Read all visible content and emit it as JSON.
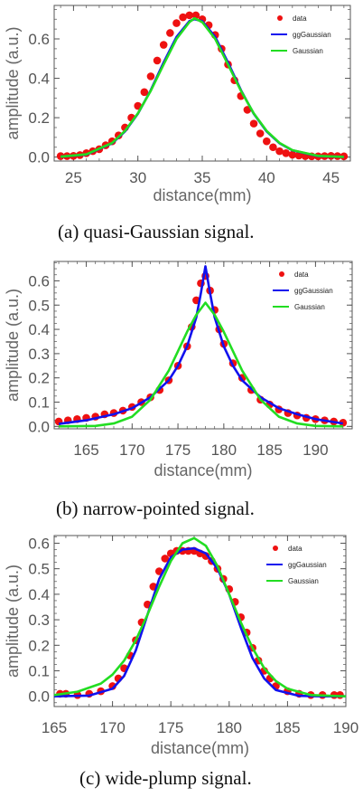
{
  "colors": {
    "data": "#ee1111",
    "ggGaussian": "#1111ee",
    "Gaussian": "#22dd22",
    "axis": "#555555"
  },
  "captions": [
    "(a)  quasi-Gaussian signal.",
    "(b)  narrow-pointed signal.",
    "(c)  wide-plump signal."
  ],
  "chart_data": [
    {
      "type": "scatter",
      "title": "",
      "xlabel": "distance(mm)",
      "ylabel": "amplitude (a.u.)",
      "xlim": [
        23.5,
        46.5
      ],
      "ylim": [
        -0.02,
        0.77
      ],
      "xticks": [
        25,
        30,
        35,
        40,
        45
      ],
      "yticks": [
        0.0,
        0.2,
        0.4,
        0.6
      ],
      "tick_labels_x": [
        "25",
        "30",
        "35",
        "40",
        "45"
      ],
      "tick_labels_y": [
        "0.0",
        "0.2",
        "0.4",
        "0.6"
      ],
      "legend": {
        "placement": "top-right",
        "entries": [
          "data",
          "ggGaussian",
          "Gaussian"
        ]
      },
      "series": [
        {
          "name": "data",
          "style": "points",
          "x": [
            24.0,
            24.5,
            25.0,
            25.5,
            26.0,
            26.5,
            27.0,
            27.5,
            28.0,
            28.5,
            29.0,
            29.5,
            30.0,
            30.5,
            31.0,
            31.5,
            32.0,
            32.5,
            33.0,
            33.5,
            34.0,
            34.5,
            35.0,
            35.5,
            36.0,
            36.5,
            37.0,
            37.5,
            38.0,
            38.5,
            39.0,
            39.5,
            40.0,
            40.5,
            41.0,
            41.5,
            42.0,
            42.5,
            43.0,
            43.5,
            44.0,
            44.5,
            45.0,
            45.5,
            46.0
          ],
          "y": [
            0.005,
            0.005,
            0.006,
            0.01,
            0.02,
            0.03,
            0.04,
            0.06,
            0.08,
            0.11,
            0.15,
            0.2,
            0.26,
            0.33,
            0.41,
            0.49,
            0.57,
            0.63,
            0.68,
            0.71,
            0.72,
            0.72,
            0.7,
            0.67,
            0.62,
            0.55,
            0.47,
            0.39,
            0.31,
            0.24,
            0.17,
            0.12,
            0.08,
            0.05,
            0.03,
            0.02,
            0.012,
            0.008,
            0.005,
            0.004,
            0.004,
            0.005,
            0.006,
            0.005,
            0.004
          ]
        },
        {
          "name": "ggGaussian",
          "style": "line",
          "x": [
            24,
            26,
            28,
            29,
            30,
            31,
            32,
            33,
            34,
            34.4,
            35,
            36,
            37,
            38,
            39,
            40,
            41,
            42,
            44,
            46
          ],
          "y": [
            0.002,
            0.013,
            0.07,
            0.13,
            0.22,
            0.34,
            0.48,
            0.61,
            0.69,
            0.7,
            0.69,
            0.61,
            0.48,
            0.34,
            0.22,
            0.13,
            0.07,
            0.034,
            0.005,
            0.001
          ]
        },
        {
          "name": "Gaussian",
          "style": "line",
          "x": [
            24,
            26,
            28,
            29,
            30,
            31,
            32,
            33,
            34,
            34.4,
            35,
            36,
            37,
            38,
            39,
            40,
            41,
            42,
            44,
            46
          ],
          "y": [
            0.002,
            0.014,
            0.072,
            0.133,
            0.222,
            0.337,
            0.47,
            0.6,
            0.685,
            0.705,
            0.685,
            0.6,
            0.47,
            0.337,
            0.222,
            0.133,
            0.072,
            0.035,
            0.006,
            0.001
          ]
        }
      ]
    },
    {
      "type": "scatter",
      "title": "",
      "xlabel": "distance(mm)",
      "ylabel": "amplitude (a.u.)",
      "xlim": [
        161.5,
        194
      ],
      "ylim": [
        -0.01,
        0.68
      ],
      "xticks": [
        165,
        170,
        175,
        180,
        185,
        190
      ],
      "yticks": [
        0.0,
        0.1,
        0.2,
        0.3,
        0.4,
        0.5,
        0.6
      ],
      "tick_labels_x": [
        "165",
        "170",
        "175",
        "180",
        "185",
        "190"
      ],
      "tick_labels_y": [
        "0.0",
        "0.1",
        "0.2",
        "0.3",
        "0.4",
        "0.5",
        "0.6"
      ],
      "legend": {
        "placement": "top-right",
        "entries": [
          "data",
          "ggGaussian",
          "Gaussian"
        ]
      },
      "series": [
        {
          "name": "data",
          "style": "points",
          "x": [
            162,
            163,
            164,
            165,
            166,
            167,
            168,
            169,
            170,
            171,
            172,
            173,
            174,
            175,
            176,
            176.5,
            177,
            177.5,
            178,
            178.5,
            179,
            179.5,
            180,
            181,
            182,
            183,
            184,
            185,
            186,
            187,
            188,
            189,
            190,
            191,
            192,
            193
          ],
          "y": [
            0.02,
            0.025,
            0.03,
            0.035,
            0.04,
            0.05,
            0.055,
            0.065,
            0.08,
            0.1,
            0.12,
            0.15,
            0.19,
            0.25,
            0.33,
            0.41,
            0.52,
            0.59,
            0.62,
            0.56,
            0.48,
            0.4,
            0.34,
            0.26,
            0.2,
            0.15,
            0.11,
            0.09,
            0.07,
            0.055,
            0.045,
            0.035,
            0.03,
            0.025,
            0.02,
            0.015
          ]
        },
        {
          "name": "ggGaussian",
          "style": "line",
          "x": [
            162,
            165,
            168,
            170,
            172,
            174,
            175,
            176,
            177,
            177.5,
            178,
            178.5,
            179,
            180,
            181,
            182,
            184,
            186,
            188,
            190,
            193
          ],
          "y": [
            0.01,
            0.025,
            0.05,
            0.075,
            0.12,
            0.19,
            0.25,
            0.33,
            0.45,
            0.55,
            0.66,
            0.55,
            0.45,
            0.33,
            0.25,
            0.19,
            0.12,
            0.075,
            0.05,
            0.03,
            0.012
          ]
        },
        {
          "name": "Gaussian",
          "style": "line",
          "x": [
            162,
            166,
            168,
            170,
            172,
            174,
            175,
            176,
            177,
            178,
            179,
            180,
            181,
            182,
            184,
            186,
            188,
            190,
            193
          ],
          "y": [
            0.0,
            0.002,
            0.012,
            0.04,
            0.11,
            0.23,
            0.31,
            0.39,
            0.46,
            0.51,
            0.46,
            0.39,
            0.31,
            0.23,
            0.11,
            0.04,
            0.012,
            0.002,
            0.0
          ]
        }
      ]
    },
    {
      "type": "scatter",
      "title": "",
      "xlabel": "distance(mm)",
      "ylabel": "amplitude (a.u.)",
      "xlim": [
        165,
        190
      ],
      "ylim": [
        -0.04,
        0.63
      ],
      "xticks": [
        165,
        170,
        175,
        180,
        185,
        190
      ],
      "yticks": [
        0.0,
        0.1,
        0.2,
        0.3,
        0.4,
        0.5,
        0.6
      ],
      "tick_labels_x": [
        "165",
        "170",
        "175",
        "180",
        "185",
        "190"
      ],
      "tick_labels_y": [
        "0.0",
        "0.1",
        "0.2",
        "0.3",
        "0.4",
        "0.5",
        "0.6"
      ],
      "legend": {
        "placement": "top-right",
        "entries": [
          "data",
          "ggGaussian",
          "Gaussian"
        ]
      },
      "series": [
        {
          "name": "data",
          "style": "points",
          "x": [
            165.5,
            166,
            167,
            168,
            169,
            170,
            170.5,
            171,
            171.5,
            172,
            172.5,
            173,
            173.5,
            174,
            174.5,
            175,
            175.5,
            176,
            176.5,
            177,
            177.5,
            178,
            178.5,
            179,
            179.5,
            180,
            180.5,
            181,
            181.5,
            182,
            182.5,
            183,
            183.5,
            184,
            185,
            186,
            187,
            188,
            189,
            189.5
          ],
          "y": [
            0.01,
            0.01,
            0.005,
            0.01,
            0.02,
            0.04,
            0.07,
            0.11,
            0.16,
            0.22,
            0.29,
            0.36,
            0.43,
            0.49,
            0.54,
            0.56,
            0.57,
            0.57,
            0.57,
            0.57,
            0.56,
            0.55,
            0.53,
            0.5,
            0.46,
            0.42,
            0.37,
            0.31,
            0.25,
            0.19,
            0.14,
            0.1,
            0.07,
            0.04,
            0.02,
            0.01,
            0.005,
            0.005,
            0.005,
            0.005
          ]
        },
        {
          "name": "ggGaussian",
          "style": "line",
          "x": [
            165,
            168,
            170,
            171,
            172,
            173,
            174,
            175,
            176,
            177,
            178,
            179,
            180,
            181,
            182,
            183,
            184,
            186,
            188,
            190
          ],
          "y": [
            0.0,
            0.003,
            0.03,
            0.08,
            0.18,
            0.32,
            0.46,
            0.545,
            0.575,
            0.58,
            0.56,
            0.5,
            0.4,
            0.27,
            0.15,
            0.07,
            0.025,
            0.002,
            0.0,
            0.0
          ]
        },
        {
          "name": "Gaussian",
          "style": "line",
          "x": [
            165,
            167,
            169,
            170,
            171,
            172,
            173,
            174,
            175,
            176,
            177,
            178,
            179,
            180,
            181,
            182,
            183,
            184,
            185,
            187,
            190
          ],
          "y": [
            0.005,
            0.018,
            0.05,
            0.085,
            0.14,
            0.22,
            0.32,
            0.43,
            0.53,
            0.6,
            0.62,
            0.59,
            0.51,
            0.4,
            0.29,
            0.19,
            0.11,
            0.06,
            0.03,
            0.005,
            0.0
          ]
        }
      ]
    }
  ]
}
